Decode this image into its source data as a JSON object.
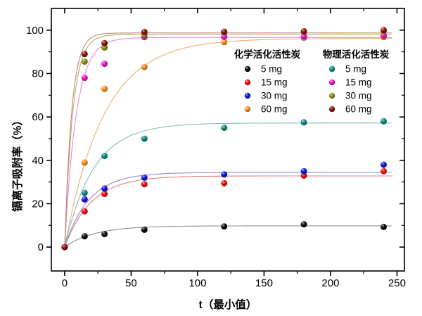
{
  "figure": {
    "background": "#ffffff",
    "frame_color": "#000000",
    "x_axis": {
      "label": "t（最小值）",
      "range": [
        -10,
        255.6
      ],
      "major_ticks": [
        0,
        50,
        100,
        150,
        200,
        250
      ],
      "tick_labels": [
        "0",
        "50",
        "100",
        "150",
        "200",
        "250"
      ],
      "minor_ticks": [
        25,
        75,
        125,
        175,
        225
      ]
    },
    "y_axis": {
      "label": "镉离子吸附率（%）",
      "range": [
        -11,
        110
      ],
      "major_ticks": [
        0,
        20,
        40,
        60,
        80,
        100
      ],
      "tick_labels": [
        "0",
        "20",
        "40",
        "60",
        "80",
        "100"
      ],
      "minor_ticks": [
        10,
        30,
        50,
        70,
        90
      ]
    },
    "legend_group_titles": [
      "化学活化活性炭",
      "物理活化活性炭"
    ]
  },
  "chart_data": {
    "type": "scatter",
    "xlabel": "t（最小值）",
    "ylabel": "镉离子吸附率（%）",
    "xlim": [
      -10,
      255.6
    ],
    "ylim": [
      -11,
      110
    ],
    "grid": "off",
    "legend_position": "inside-top-right-two-columns",
    "x": [
      0,
      15,
      30,
      60,
      120,
      180,
      240
    ],
    "series": [
      {
        "id": "chem-5mg",
        "group": "化学活化活性炭",
        "label": "5 mg",
        "marker_color": "#0a0a0a",
        "line_color": "#909090",
        "values": [
          0,
          5,
          6,
          8,
          9.5,
          10.5,
          9.3
        ],
        "fit": {
          "A": 9.8,
          "k": 0.045
        }
      },
      {
        "id": "chem-15mg",
        "group": "化学活化活性炭",
        "label": "15 mg",
        "marker_color": "#ee1111",
        "line_color": "#e57f7f",
        "values": [
          0,
          16.5,
          24.5,
          29,
          29.5,
          33,
          35
        ],
        "fit": {
          "A": 32.8,
          "k": 0.05
        }
      },
      {
        "id": "chem-30mg",
        "group": "化学活化活性炭",
        "label": "30 mg",
        "marker_color": "#1515dd",
        "line_color": "#8c8cd0",
        "values": [
          0,
          22,
          27,
          32,
          33.5,
          35,
          38
        ],
        "fit": {
          "A": 34.4,
          "k": 0.055
        }
      },
      {
        "id": "chem-60mg",
        "group": "化学活化活性炭",
        "label": "60 mg",
        "marker_color": "#f78f1e",
        "line_color": "#eab273",
        "values": [
          0,
          39,
          73,
          83,
          94.5,
          96.5,
          96.8
        ],
        "fit": {
          "A": 96.2,
          "k": 0.034
        }
      },
      {
        "id": "phys-5mg",
        "group": "物理活化活性炭",
        "label": "5 mg",
        "marker_color": "#0d8c80",
        "line_color": "#85bfb9",
        "values": [
          0,
          25,
          42,
          50,
          55,
          57.5,
          58
        ],
        "fit": {
          "A": 57.2,
          "k": 0.046
        }
      },
      {
        "id": "phys-15mg",
        "group": "物理活化活性炭",
        "label": "15 mg",
        "marker_color": "#ee14ce",
        "line_color": "#e489dc",
        "values": [
          0,
          78,
          84.5,
          96.8,
          97,
          97.2,
          97.6
        ],
        "fit": {
          "A": 96.6,
          "k": 0.115
        }
      },
      {
        "id": "phys-30mg",
        "group": "物理活化活性炭",
        "label": "30 mg",
        "marker_color": "#8f8f12",
        "line_color": "#b3ad62",
        "values": [
          0,
          85.5,
          92,
          97.8,
          99,
          99.3,
          99.7
        ],
        "fit": {
          "A": 98.0,
          "k": 0.165
        }
      },
      {
        "id": "phys-60mg",
        "group": "物理活化活性炭",
        "label": "60 mg",
        "marker_color": "#8e1212",
        "line_color": "#bb8a7e",
        "values": [
          0,
          89,
          94,
          99.2,
          99.3,
          99.5,
          100
        ],
        "fit": {
          "A": 98.7,
          "k": 0.19
        }
      }
    ]
  }
}
